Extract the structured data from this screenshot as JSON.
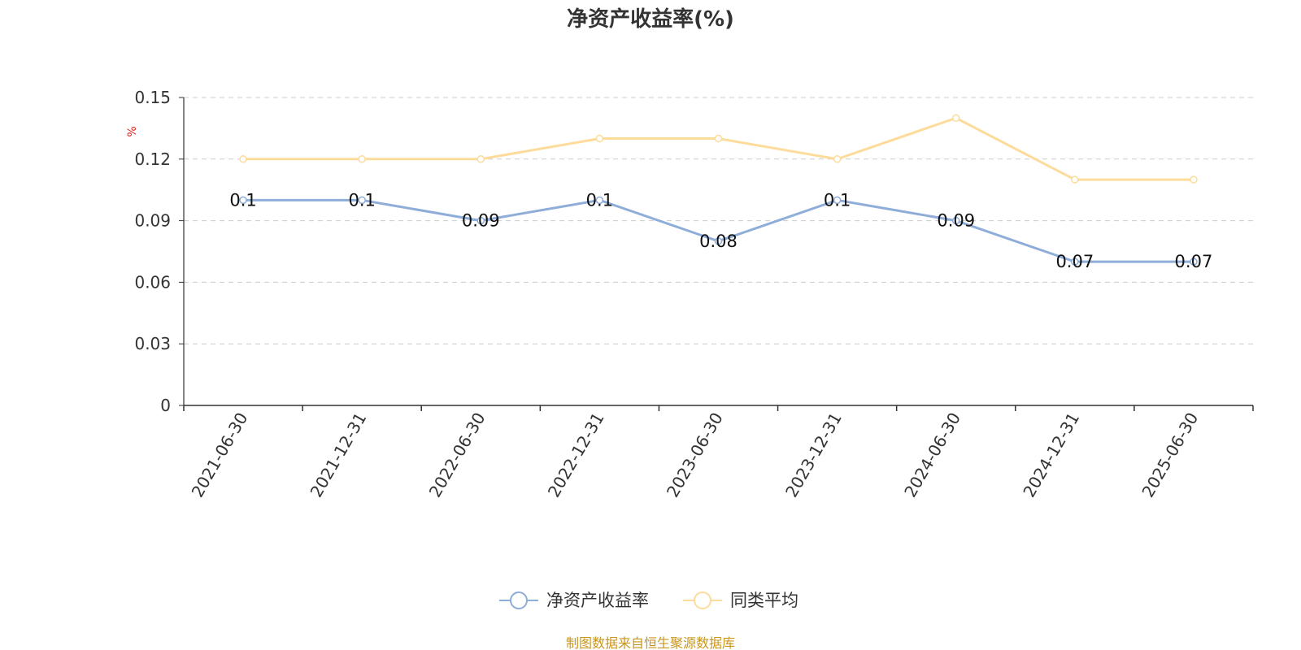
{
  "chart_data": {
    "type": "line",
    "title": "净资产收益率(%)",
    "ylabel": "%",
    "categories": [
      "2021-06-30",
      "2021-12-31",
      "2022-06-30",
      "2022-12-31",
      "2023-06-30",
      "2023-12-31",
      "2024-06-30",
      "2024-12-31",
      "2025-06-30"
    ],
    "ylim": [
      0,
      0.15
    ],
    "yticks": [
      "0",
      "0.03",
      "0.06",
      "0.09",
      "0.12",
      "0.15"
    ],
    "grid": true,
    "legend_position": "bottom",
    "series": [
      {
        "name": "净资产收益率",
        "color": "#8eadd8",
        "values": [
          0.1,
          0.1,
          0.09,
          0.1,
          0.08,
          0.1,
          0.09,
          0.07,
          0.07
        ],
        "labels": [
          "0.1",
          "0.1",
          "0.09",
          "0.1",
          "0.08",
          "0.1",
          "0.09",
          "0.07",
          "0.07"
        ]
      },
      {
        "name": "同类平均",
        "color": "#fddb9a",
        "values": [
          0.12,
          0.12,
          0.12,
          0.13,
          0.13,
          0.12,
          0.14,
          0.11,
          0.11
        ]
      }
    ]
  },
  "footer": {
    "text": "制图数据来自恒生聚源数据库",
    "color": "#c8961e"
  }
}
